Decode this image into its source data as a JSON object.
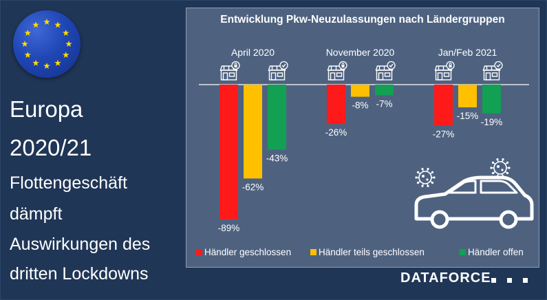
{
  "sidebar": {
    "line1": "Europa",
    "line2": "2020/21",
    "line3": "Flottengeschäft",
    "line4": "dämpft",
    "line5": "Auswirkungen des",
    "line6": "dritten Lockdowns"
  },
  "brand": "DATAFORCE",
  "colors": {
    "background": "#1f3553",
    "panel": "#4e6280",
    "red": "#ff1a1a",
    "yellow": "#ffc000",
    "green": "#12a052"
  },
  "icons": [
    "eu-flag-icon",
    "closed-shop-icon",
    "open-shop-icon",
    "virus-icon",
    "car-icon"
  ],
  "chart_data": {
    "type": "bar",
    "title": "Entwicklung Pkw-Neuzulassungen nach Ländergruppen",
    "categories": [
      "April 2020",
      "November 2020",
      "Jan/Feb 2021"
    ],
    "series": [
      {
        "name": "Händler geschlossen",
        "color": "#ff1a1a",
        "values": [
          -89,
          -26,
          -27
        ],
        "labels": [
          "-89%",
          "-26%",
          "-27%"
        ]
      },
      {
        "name": "Händler teils geschlossen",
        "color": "#ffc000",
        "values": [
          -62,
          -8,
          -15
        ],
        "labels": [
          "-62%",
          "-8%",
          "-15%"
        ]
      },
      {
        "name": "Händler offen",
        "color": "#12a052",
        "values": [
          -43,
          -7,
          -19
        ],
        "labels": [
          "-43%",
          "-7%",
          "-19%"
        ]
      }
    ],
    "ylim": [
      -100,
      0
    ],
    "grid": false,
    "legend": "bottom"
  }
}
